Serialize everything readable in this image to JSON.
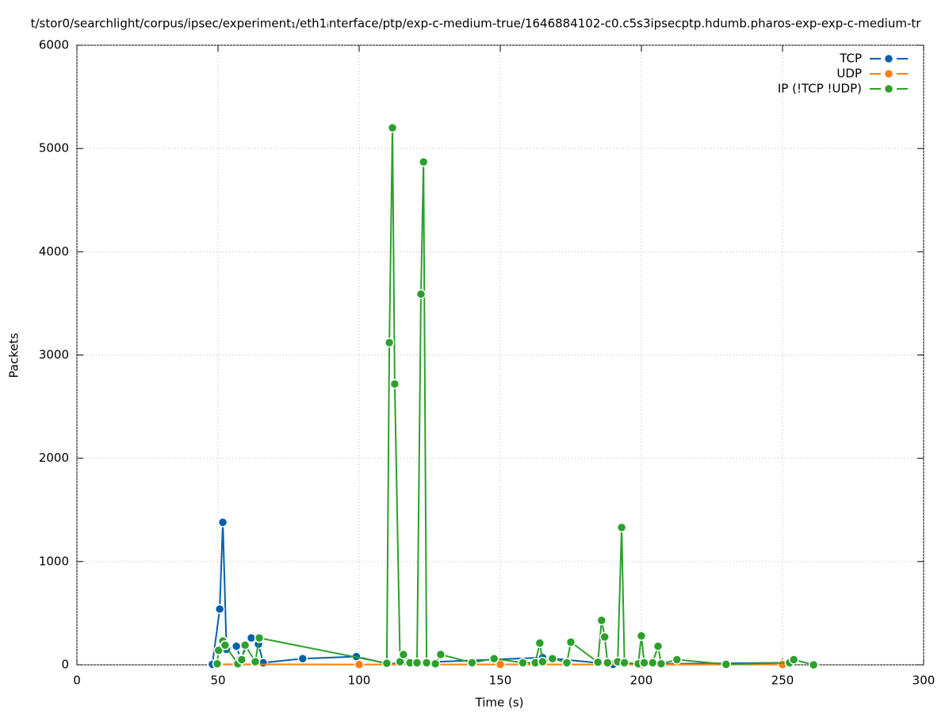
{
  "chart_data": {
    "type": "line",
    "title": "t/stor0/searchlight/corpus/ipsec/experiment₁/eth1ᵢnterface/ptp/exp-c-medium-true/1646884102-c0.c5s3ipsecptp.hdumb.pharos-exp-exp-c-medium-tr",
    "x_label": "Time (s)",
    "y_label": "Packets",
    "xlim": [
      0,
      300
    ],
    "xticks": [
      0,
      50,
      100,
      150,
      200,
      250,
      300
    ],
    "ylim": [
      0,
      6000
    ],
    "yticks": [
      0,
      1000,
      2000,
      3000,
      4000,
      5000,
      6000
    ],
    "grid": true,
    "legend": "top-right",
    "series": [
      {
        "name": "TCP",
        "color": "#0060ad",
        "x": [
          48,
          50.6,
          51.7,
          53,
          56.5,
          58,
          61.8,
          64.3,
          66,
          80,
          99,
          110,
          165,
          190,
          252
        ],
        "values": [
          5,
          540,
          1380,
          150,
          180,
          60,
          260,
          200,
          20,
          60,
          80,
          10,
          70,
          5,
          20
        ]
      },
      {
        "name": "UDP",
        "color": "#ff7f0e",
        "x": [
          50,
          100,
          150,
          200,
          250
        ],
        "values": [
          5,
          3,
          4,
          2,
          3
        ]
      },
      {
        "name": "IP (!TCP  !UDP)",
        "color": "#2ca02c",
        "x": [
          49.7,
          50.2,
          51.7,
          52.5,
          57,
          58.4,
          59.6,
          63.2,
          64.6,
          109.8,
          110.7,
          111.8,
          112.6,
          114.5,
          115.7,
          118,
          120.5,
          121.9,
          122.8,
          123.9,
          127,
          128.9,
          140,
          147.8,
          158,
          162.4,
          164,
          165,
          168.5,
          173.6,
          175,
          184.6,
          185.9,
          187,
          188,
          191.6,
          193,
          194,
          198.9,
          200,
          201,
          204,
          205.9,
          207,
          212.6,
          230,
          252.5,
          254,
          261
        ],
        "values": [
          10,
          140,
          230,
          190,
          10,
          50,
          190,
          30,
          260,
          15,
          3120,
          5200,
          2720,
          30,
          100,
          20,
          20,
          3590,
          4870,
          20,
          10,
          100,
          20,
          60,
          20,
          20,
          210,
          30,
          60,
          20,
          220,
          25,
          430,
          270,
          20,
          30,
          1330,
          20,
          10,
          280,
          20,
          20,
          180,
          10,
          50,
          5,
          20,
          50,
          0
        ]
      }
    ]
  }
}
